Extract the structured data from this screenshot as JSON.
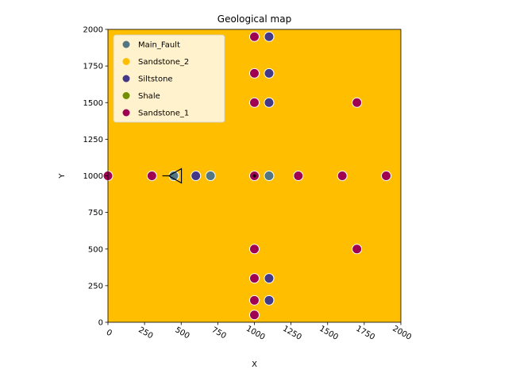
{
  "chart_data": {
    "type": "scatter",
    "title": "Geological map",
    "xlabel": "X",
    "ylabel": "Y",
    "xlim": [
      0,
      2000
    ],
    "ylim": [
      0,
      2000
    ],
    "xticks": [
      "0",
      "250",
      "500",
      "750",
      "1000",
      "1250",
      "1500",
      "1750",
      "2000"
    ],
    "yticks": [
      "0",
      "250",
      "500",
      "750",
      "1000",
      "1250",
      "1500",
      "1750",
      "2000"
    ],
    "background_unit": "Sandstone_2",
    "background_color": "#ffbe00",
    "legend_position": "upper-left",
    "grid": false,
    "series": [
      {
        "name": "Main_Fault",
        "color": "#527682",
        "points": [
          [
            450,
            1000
          ],
          [
            700,
            1000
          ],
          [
            1100,
            1000
          ]
        ]
      },
      {
        "name": "Sandstone_2",
        "color": "#ffbe00",
        "points": []
      },
      {
        "name": "Siltstone",
        "color": "#443988",
        "points": [
          [
            600,
            1000
          ],
          [
            1100,
            1950
          ],
          [
            1100,
            1700
          ],
          [
            1100,
            1500
          ],
          [
            1100,
            300
          ],
          [
            1100,
            150
          ]
        ]
      },
      {
        "name": "Shale",
        "color": "#728f02",
        "points": []
      },
      {
        "name": "Sandstone_1",
        "color": "#9f0052",
        "points": [
          [
            0,
            1000
          ],
          [
            300,
            1000
          ],
          [
            1000,
            1000
          ],
          [
            1300,
            1000
          ],
          [
            1600,
            1000
          ],
          [
            1900,
            1000
          ],
          [
            1000,
            1950
          ],
          [
            1000,
            1700
          ],
          [
            1000,
            1500
          ],
          [
            1700,
            1500
          ],
          [
            1000,
            500
          ],
          [
            1700,
            500
          ],
          [
            1000,
            300
          ],
          [
            1000,
            150
          ],
          [
            1000,
            50
          ]
        ]
      }
    ],
    "orientation_markers": [
      {
        "x": 480,
        "y": 1000,
        "direction": "left"
      },
      {
        "x": 1000,
        "y": 1000,
        "direction": "dot"
      }
    ]
  }
}
